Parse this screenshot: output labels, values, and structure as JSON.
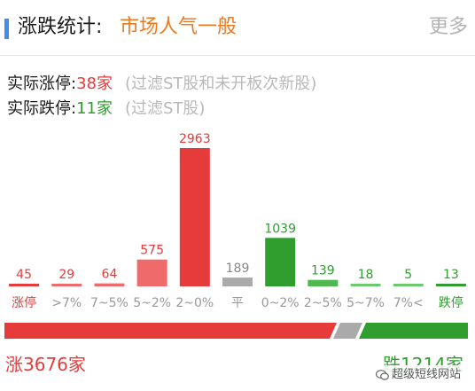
{
  "header": {
    "title": "涨跌统计:",
    "subject": "市场人气一般",
    "more": "更多"
  },
  "limit_stats": {
    "up_label": "实际涨停:",
    "up_value": "38家",
    "up_note": "(过滤ST股和未开板次新股)",
    "down_label": "实际跌停:",
    "down_value": "11家",
    "down_note": "(过滤ST股)"
  },
  "colors": {
    "rise": "#e53b3b",
    "rise_light": "#ef6a6a",
    "flat": "#aaaaaa",
    "fall": "#2f9e2f",
    "fall_light": "#6cc96c",
    "accent": "#3d8ef0",
    "subject": "#ee7a1f"
  },
  "chart_data": {
    "type": "bar",
    "categories": [
      "涨停",
      ">7%",
      "7~5%",
      "5~2%",
      "2~0%",
      "平",
      "0~2%",
      "2~5%",
      "5~7%",
      "7%<",
      "跌停"
    ],
    "values": [
      45,
      29,
      64,
      575,
      2963,
      189,
      1039,
      139,
      18,
      5,
      13
    ],
    "bar_colors": [
      "#e53b3b",
      "#ef6a6a",
      "#ef6a6a",
      "#ef6a6a",
      "#e53b3b",
      "#aaaaaa",
      "#2f9e2f",
      "#4fb84f",
      "#6cc96c",
      "#6cc96c",
      "#2f9e2f"
    ],
    "label_colors": [
      "#e53b3b",
      "#e53b3b",
      "#e53b3b",
      "#e53b3b",
      "#e53b3b",
      "#888888",
      "#2f9e2f",
      "#2f9e2f",
      "#2f9e2f",
      "#2f9e2f",
      "#2f9e2f"
    ],
    "cat_colors": [
      "#e53b3b",
      "#999999",
      "#999999",
      "#999999",
      "#999999",
      "#999999",
      "#999999",
      "#999999",
      "#999999",
      "#999999",
      "#2f9e2f"
    ],
    "ylim": [
      0,
      2963
    ],
    "grid": false
  },
  "ratio": {
    "rise": 3676,
    "fall": 1214
  },
  "summary": {
    "rise_text": "涨3676家",
    "fall_text": "跌1214家"
  },
  "watermark": {
    "text": "超级短线网站"
  }
}
